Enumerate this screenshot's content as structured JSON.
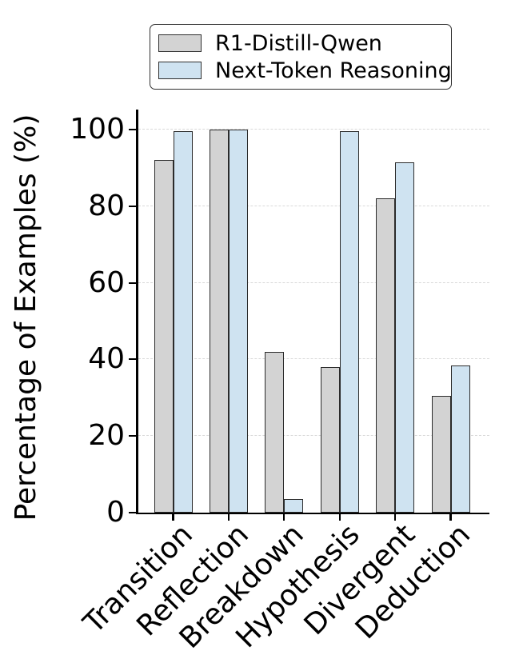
{
  "figure": {
    "background": "#ffffff"
  },
  "legend": {
    "items": [
      {
        "label": "R1-Distill-Qwen",
        "color": "#d3d3d3"
      },
      {
        "label": "Next-Token Reasoning",
        "color": "#cfe3f1"
      }
    ]
  },
  "chart_data": {
    "type": "bar",
    "title": "",
    "xlabel": "",
    "ylabel": "Percentage of Examples (%)",
    "categories": [
      "Transition",
      "Reflection",
      "Breakdown",
      "Hypothesis",
      "Divergent",
      "Deduction"
    ],
    "series": [
      {
        "name": "R1-Distill-Qwen",
        "color": "#d3d3d3",
        "values": [
          92,
          100,
          42,
          38,
          82,
          30.5
        ]
      },
      {
        "name": "Next-Token Reasoning",
        "color": "#cfe3f1",
        "values": [
          99.5,
          100,
          3.5,
          99.5,
          91.5,
          38.5
        ]
      }
    ],
    "yticks": [
      0,
      20,
      40,
      60,
      80,
      100
    ],
    "ylim": [
      0,
      105
    ],
    "grid": "horizontal-dashed",
    "gridline_color": "#d9d9d9",
    "bar_edge_color": "#2b2b2b",
    "legend_position": "top-center",
    "xtick_rotation": 45
  }
}
